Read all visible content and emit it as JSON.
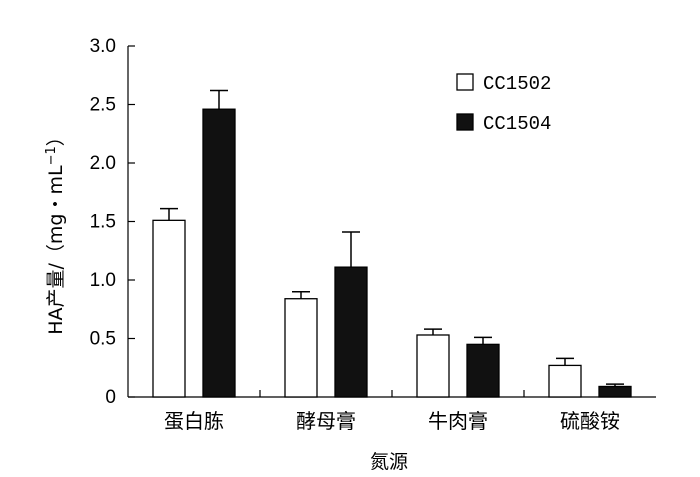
{
  "chart_data": {
    "type": "bar",
    "title": "",
    "xlabel": "氮源",
    "ylabel": "HA产量/（mg・mL",
    "ylabel_superscript": "−1",
    "ylabel_suffix": "）",
    "categories": [
      "蛋白胨",
      "酵母膏",
      "牛肉膏",
      "硫酸铵"
    ],
    "ylim": [
      0,
      3.0
    ],
    "yticks": [
      "0",
      "0.5",
      "1.0",
      "1.5",
      "2.0",
      "2.5",
      "3.0"
    ],
    "ytick_values": [
      0,
      0.5,
      1.0,
      1.5,
      2.0,
      2.5,
      3.0
    ],
    "grid": false,
    "legend_position": "top-right",
    "series": [
      {
        "name": "CC1502",
        "color": "#ffffff",
        "values": [
          1.51,
          0.84,
          0.53,
          0.27
        ],
        "errors": [
          0.1,
          0.06,
          0.05,
          0.06
        ]
      },
      {
        "name": "CC1504",
        "color": "#111111",
        "values": [
          2.46,
          1.11,
          0.45,
          0.09
        ],
        "errors": [
          0.16,
          0.3,
          0.06,
          0.02
        ]
      }
    ]
  }
}
